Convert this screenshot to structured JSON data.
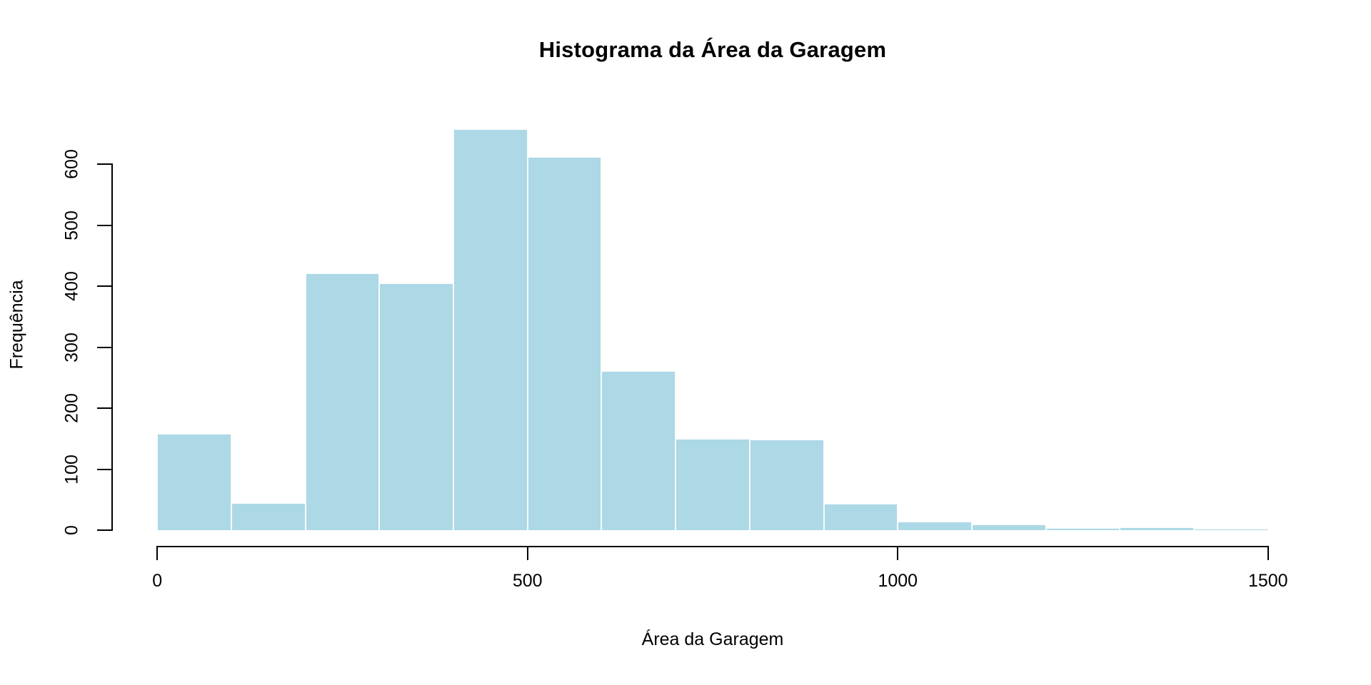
{
  "chart_data": {
    "type": "bar",
    "subtype": "histogram",
    "title": "Histograma da Área da Garagem",
    "xlabel": "Área da Garagem",
    "ylabel": "Frequência",
    "bin_width": 100,
    "bin_start": 0,
    "categories": [
      "0-100",
      "100-200",
      "200-300",
      "300-400",
      "400-500",
      "500-600",
      "600-700",
      "700-800",
      "800-900",
      "900-1000",
      "1000-1100",
      "1100-1200",
      "1200-1300",
      "1300-1400",
      "1400-1500"
    ],
    "values": [
      158,
      44,
      421,
      405,
      657,
      612,
      261,
      150,
      149,
      43,
      14,
      9,
      3,
      5,
      2
    ],
    "xlim": [
      0,
      1500
    ],
    "ylim": [
      0,
      660
    ],
    "x_ticks": [
      0,
      500,
      1000,
      1500
    ],
    "y_ticks": [
      0,
      100,
      200,
      300,
      400,
      500,
      600
    ],
    "bar_fill": "#ADD8E6",
    "bar_border": "#FFFFFF",
    "axis_color": "#000000",
    "background": "#FFFFFF",
    "grid": false,
    "legend": null,
    "title_bold": true,
    "y_tick_labels_rotated": true
  }
}
